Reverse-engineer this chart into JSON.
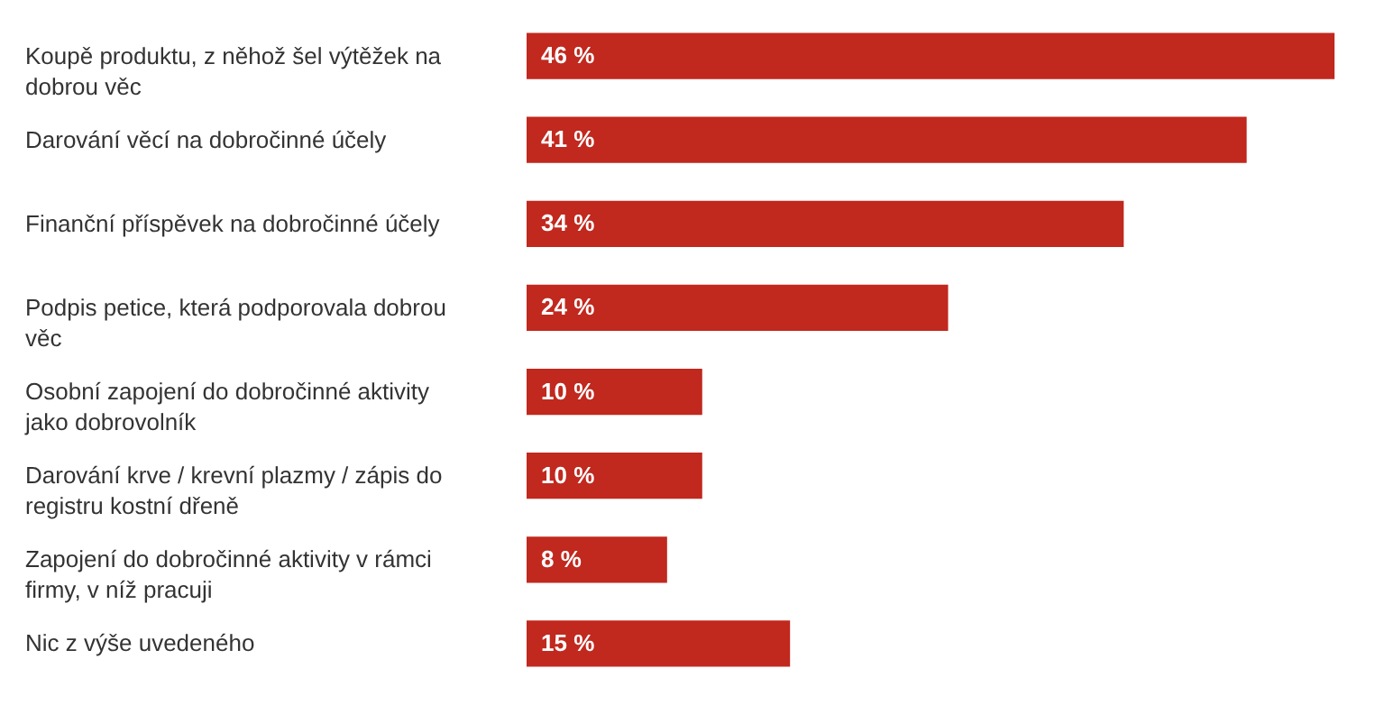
{
  "chart_data": {
    "type": "bar",
    "orientation": "horizontal",
    "categories": [
      "Koupě produktu, z něhož šel výtěžek na dobrou věc",
      "Darování věcí na dobročinné účely",
      "Finanční příspěvek na dobročinné účely",
      "Podpis petice, která podporovala dobrou věc",
      "Osobní zapojení do dobročinné aktivity jako dobrovolník",
      "Darování krve / krevní plazmy / zápis do registru kostní dřeně",
      "Zapojení do dobročinné aktivity v rámci firmy, v níž pracuji",
      "Nic z výše uvedeného"
    ],
    "values": [
      46,
      41,
      34,
      24,
      10,
      10,
      8,
      15
    ],
    "value_labels": [
      "46 %",
      "41 %",
      "34 %",
      "24 %",
      "10 %",
      "10 %",
      "8 %",
      "15 %"
    ],
    "color": "#c1281e"
  }
}
